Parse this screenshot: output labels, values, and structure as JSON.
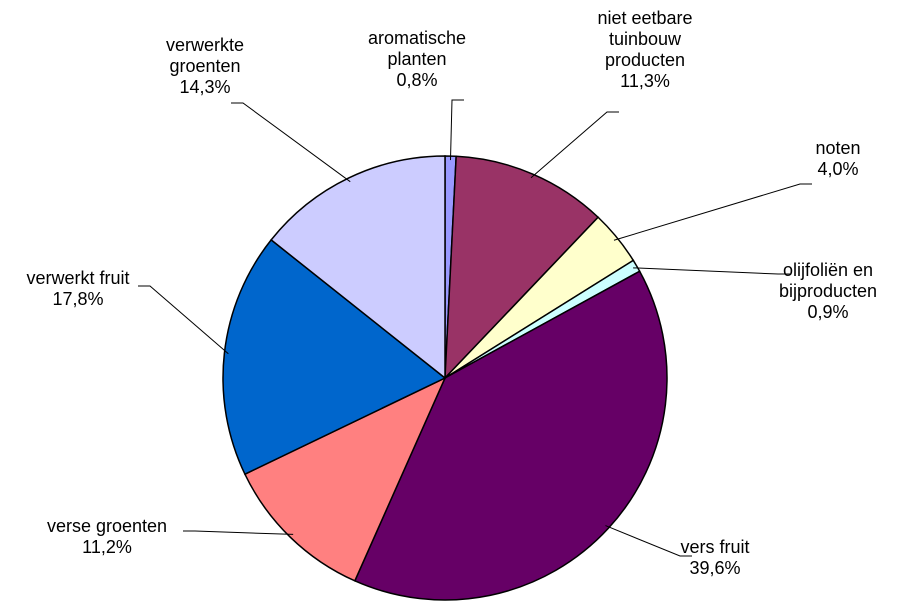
{
  "chart_data": {
    "type": "pie",
    "categories": [
      "aromatische planten",
      "niet eetbare tuinbouw producten",
      "noten",
      "olijfoliën en bijproducten",
      "vers fruit",
      "verse groenten",
      "verwerkt fruit",
      "verwerkte groenten"
    ],
    "values": [
      0.8,
      11.3,
      4.0,
      0.9,
      39.6,
      11.2,
      17.8,
      14.3
    ],
    "value_labels": [
      "0,8%",
      "11,3%",
      "4,0%",
      "0,9%",
      "39,6%",
      "11,2%",
      "17,8%",
      "14,3%"
    ],
    "colors": [
      "#9999ff",
      "#993366",
      "#ffffcc",
      "#ccffff",
      "#660066",
      "#ff8080",
      "#0066cc",
      "#ccccff"
    ]
  }
}
